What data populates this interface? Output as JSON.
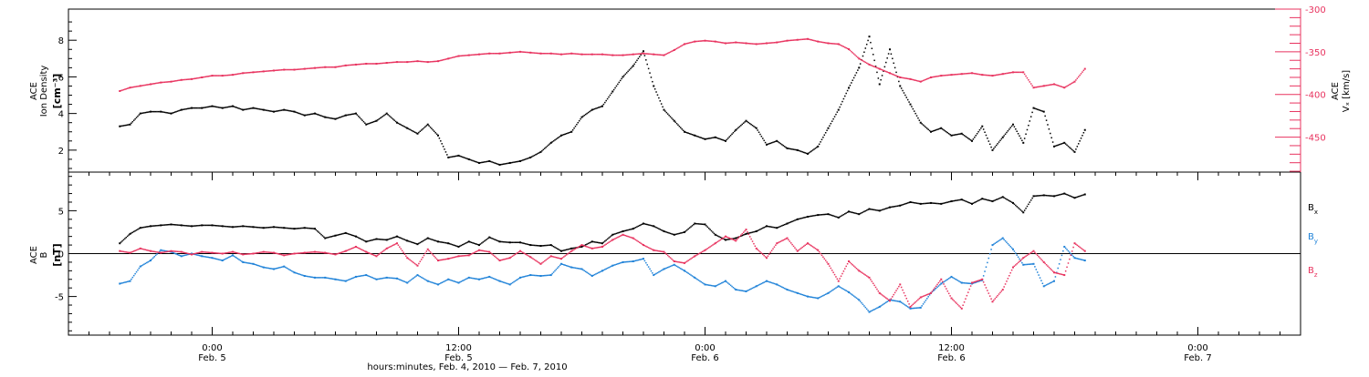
{
  "chart_data": [
    {
      "type": "scatter",
      "panel": "top",
      "left_axis": {
        "label_lines": [
          "ACE",
          "Ion Density"
        ],
        "unit": "[cm⁻³]",
        "ylim": [
          0.8,
          9.7
        ],
        "ticks": [
          2,
          4,
          6,
          8
        ],
        "tick_labels": [
          "2",
          "4",
          "6",
          "8"
        ]
      },
      "right_axis": {
        "label_lines": [
          "ACE",
          "Vₓ [km/s]"
        ],
        "ylim": [
          -491,
          -300
        ],
        "ticks": [
          -300,
          -350,
          -400,
          -450
        ],
        "tick_labels": [
          "-300",
          "-350",
          "-400",
          "-450"
        ]
      },
      "series": [
        {
          "axis": "left",
          "color": "#000000",
          "t_hours": [
            -4.5,
            -4,
            -3.5,
            -3,
            -2.5,
            -2,
            -1.5,
            -1,
            -0.5,
            0,
            0.5,
            1,
            1.5,
            2,
            2.5,
            3,
            3.5,
            4,
            4.5,
            5,
            5.5,
            6,
            6.5,
            7,
            7.5,
            8,
            8.5,
            9,
            9.5,
            10,
            10.5,
            11,
            11.5,
            12,
            12.5,
            13,
            13.5,
            14,
            14.5,
            15,
            15.5,
            16,
            16.5,
            17,
            17.5,
            18,
            18.5,
            19,
            19.5,
            20,
            20.5,
            21,
            21.5,
            22,
            22.5,
            23,
            23.5,
            24,
            24.5,
            25,
            25.5,
            26,
            26.5,
            27,
            27.5,
            28,
            28.5,
            29,
            29.5,
            30,
            30.5,
            31,
            31.5,
            32,
            32.5,
            33,
            33.5,
            34,
            34.5,
            35,
            35.5,
            36,
            36.5,
            37,
            37.5,
            38,
            38.5,
            39,
            39.5,
            40,
            40.5,
            41,
            41.5,
            42,
            42.5
          ],
          "values": [
            3.3,
            3.4,
            4.0,
            4.1,
            4.1,
            4.0,
            4.2,
            4.3,
            4.3,
            4.4,
            4.3,
            4.4,
            4.2,
            4.3,
            4.2,
            4.1,
            4.2,
            4.1,
            3.9,
            4.0,
            3.8,
            3.7,
            3.9,
            4.0,
            3.4,
            3.6,
            4.0,
            3.5,
            3.2,
            2.9,
            3.4,
            2.8,
            1.6,
            1.7,
            1.5,
            1.3,
            1.4,
            1.2,
            1.3,
            1.4,
            1.6,
            1.9,
            2.4,
            2.8,
            3.0,
            3.8,
            4.2,
            4.4,
            5.2,
            6.0,
            6.6,
            7.4,
            5.5,
            4.2,
            3.6,
            3.0,
            2.8,
            2.6,
            2.7,
            2.5,
            3.1,
            3.6,
            3.2,
            2.3,
            2.5,
            2.1,
            2.0,
            1.8,
            2.2,
            3.2,
            4.2,
            5.4,
            6.5,
            8.2,
            5.6,
            7.5,
            5.5,
            4.5,
            3.5,
            3.0,
            3.2,
            2.8,
            2.9,
            2.5,
            3.3,
            2.0,
            2.7,
            3.4,
            2.4,
            4.3,
            4.1,
            2.2,
            2.4,
            1.9,
            3.1
          ]
        },
        {
          "axis": "right",
          "color": "#e8335f",
          "t_hours": [
            -4.5,
            -4,
            -3.5,
            -3,
            -2.5,
            -2,
            -1.5,
            -1,
            -0.5,
            0,
            0.5,
            1,
            1.5,
            2,
            2.5,
            3,
            3.5,
            4,
            4.5,
            5,
            5.5,
            6,
            6.5,
            7,
            7.5,
            8,
            8.5,
            9,
            9.5,
            10,
            10.5,
            11,
            11.5,
            12,
            12.5,
            13,
            13.5,
            14,
            14.5,
            15,
            15.5,
            16,
            16.5,
            17,
            17.5,
            18,
            18.5,
            19,
            19.5,
            20,
            20.5,
            21,
            21.5,
            22,
            22.5,
            23,
            23.5,
            24,
            24.5,
            25,
            25.5,
            26,
            26.5,
            27,
            27.5,
            28,
            28.5,
            29,
            29.5,
            30,
            30.5,
            31,
            31.5,
            32,
            32.5,
            33,
            33.5,
            34,
            34.5,
            35,
            35.5,
            36,
            36.5,
            37,
            37.5,
            38,
            38.5,
            39,
            39.5,
            40,
            40.5,
            41,
            41.5,
            42,
            42.5
          ],
          "values": [
            -396,
            -392,
            -390,
            -388,
            -386,
            -385,
            -383,
            -382,
            -380,
            -378,
            -378,
            -377,
            -375,
            -374,
            -373,
            -372,
            -371,
            -371,
            -370,
            -369,
            -368,
            -368,
            -366,
            -365,
            -364,
            -364,
            -363,
            -362,
            -362,
            -361,
            -362,
            -361,
            -358,
            -355,
            -354,
            -353,
            -352,
            -352,
            -351,
            -350,
            -351,
            -352,
            -352,
            -353,
            -352,
            -353,
            -353,
            -353,
            -354,
            -354,
            -353,
            -352,
            -353,
            -354,
            -348,
            -341,
            -338,
            -337,
            -338,
            -340,
            -339,
            -340,
            -341,
            -340,
            -339,
            -337,
            -336,
            -335,
            -338,
            -340,
            -341,
            -347,
            -358,
            -365,
            -370,
            -375,
            -380,
            -382,
            -385,
            -380,
            -378,
            -377,
            -376,
            -375,
            -377,
            -378,
            -376,
            -374,
            -374,
            -392,
            -390,
            -388,
            -392,
            -385,
            -370
          ]
        }
      ]
    },
    {
      "type": "scatter",
      "panel": "bottom",
      "left_axis": {
        "label_lines": [
          "ACE",
          "B"
        ],
        "unit": "[nT]",
        "ylim": [
          -9.5,
          9.5
        ],
        "ticks": [
          5,
          0,
          -5
        ],
        "tick_labels": [
          "5",
          "0",
          "-5"
        ]
      },
      "zero_line": true,
      "series": [
        {
          "name": "Bx",
          "label": "B",
          "subscript": "x",
          "color": "#000000",
          "t_hours": [
            -4.5,
            -4,
            -3.5,
            -3,
            -2.5,
            -2,
            -1.5,
            -1,
            -0.5,
            0,
            0.5,
            1,
            1.5,
            2,
            2.5,
            3,
            3.5,
            4,
            4.5,
            5,
            5.5,
            6,
            6.5,
            7,
            7.5,
            8,
            8.5,
            9,
            9.5,
            10,
            10.5,
            11,
            11.5,
            12,
            12.5,
            13,
            13.5,
            14,
            14.5,
            15,
            15.5,
            16,
            16.5,
            17,
            17.5,
            18,
            18.5,
            19,
            19.5,
            20,
            20.5,
            21,
            21.5,
            22,
            22.5,
            23,
            23.5,
            24,
            24.5,
            25,
            25.5,
            26,
            26.5,
            27,
            27.5,
            28,
            28.5,
            29,
            29.5,
            30,
            30.5,
            31,
            31.5,
            32,
            32.5,
            33,
            33.5,
            34,
            34.5,
            35,
            35.5,
            36,
            36.5,
            37,
            37.5,
            38,
            38.5,
            39,
            39.5,
            40,
            40.5,
            41,
            41.5,
            42,
            42.5
          ],
          "values": [
            1.2,
            2.3,
            3.0,
            3.2,
            3.3,
            3.4,
            3.3,
            3.2,
            3.3,
            3.3,
            3.2,
            3.1,
            3.2,
            3.1,
            3.0,
            3.1,
            3.0,
            2.9,
            3.0,
            2.9,
            1.8,
            2.1,
            2.4,
            2.0,
            1.4,
            1.7,
            1.6,
            2.0,
            1.5,
            1.1,
            1.8,
            1.4,
            1.2,
            0.8,
            1.4,
            1.0,
            1.9,
            1.4,
            1.3,
            1.3,
            1.0,
            0.9,
            1.0,
            0.3,
            0.6,
            0.8,
            1.4,
            1.2,
            2.2,
            2.6,
            2.9,
            3.5,
            3.2,
            2.6,
            2.2,
            2.5,
            3.5,
            3.4,
            2.2,
            1.6,
            1.8,
            2.3,
            2.6,
            3.2,
            3.0,
            3.5,
            4.0,
            4.3,
            4.5,
            4.6,
            4.2,
            4.9,
            4.6,
            5.2,
            5.0,
            5.4,
            5.6,
            6.0,
            5.8,
            5.9,
            5.8,
            6.1,
            6.3,
            5.8,
            6.4,
            6.1,
            6.6,
            5.9,
            4.8,
            6.7,
            6.8,
            6.7,
            7.0,
            6.5,
            6.9
          ]
        },
        {
          "name": "By",
          "label": "B",
          "subscript": "y",
          "color": "#1f82d8",
          "t_hours": [
            -4.5,
            -4,
            -3.5,
            -3,
            -2.5,
            -2,
            -1.5,
            -1,
            -0.5,
            0,
            0.5,
            1,
            1.5,
            2,
            2.5,
            3,
            3.5,
            4,
            4.5,
            5,
            5.5,
            6,
            6.5,
            7,
            7.5,
            8,
            8.5,
            9,
            9.5,
            10,
            10.5,
            11,
            11.5,
            12,
            12.5,
            13,
            13.5,
            14,
            14.5,
            15,
            15.5,
            16,
            16.5,
            17,
            17.5,
            18,
            18.5,
            19,
            19.5,
            20,
            20.5,
            21,
            21.5,
            22,
            22.5,
            23,
            23.5,
            24,
            24.5,
            25,
            25.5,
            26,
            26.5,
            27,
            27.5,
            28,
            28.5,
            29,
            29.5,
            30,
            30.5,
            31,
            31.5,
            32,
            32.5,
            33,
            33.5,
            34,
            34.5,
            35,
            35.5,
            36,
            36.5,
            37,
            37.5,
            38,
            38.5,
            39,
            39.5,
            40,
            40.5,
            41,
            41.5,
            42,
            42.5
          ],
          "values": [
            -3.5,
            -3.2,
            -1.5,
            -0.8,
            0.4,
            0.2,
            -0.3,
            0.0,
            -0.3,
            -0.5,
            -0.8,
            -0.2,
            -1.0,
            -1.2,
            -1.6,
            -1.8,
            -1.5,
            -2.2,
            -2.6,
            -2.8,
            -2.8,
            -3.0,
            -3.2,
            -2.7,
            -2.5,
            -3.0,
            -2.8,
            -2.9,
            -3.4,
            -2.5,
            -3.2,
            -3.6,
            -3.0,
            -3.4,
            -2.8,
            -3.0,
            -2.7,
            -3.2,
            -3.6,
            -2.8,
            -2.5,
            -2.6,
            -2.5,
            -1.2,
            -1.6,
            -1.8,
            -2.6,
            -2.0,
            -1.4,
            -1.0,
            -0.9,
            -0.6,
            -2.5,
            -1.8,
            -1.3,
            -2.0,
            -2.8,
            -3.6,
            -3.8,
            -3.2,
            -4.2,
            -4.4,
            -3.8,
            -3.2,
            -3.6,
            -4.2,
            -4.6,
            -5.0,
            -5.2,
            -4.6,
            -3.8,
            -4.5,
            -5.4,
            -6.8,
            -6.2,
            -5.4,
            -5.6,
            -6.4,
            -6.3,
            -4.6,
            -3.5,
            -2.7,
            -3.4,
            -3.5,
            -3.1,
            1.0,
            1.8,
            0.5,
            -1.3,
            -1.2,
            -3.8,
            -3.2,
            0.8,
            -0.5,
            -0.8
          ]
        },
        {
          "name": "Bz",
          "label": "B",
          "subscript": "z",
          "color": "#e8335f",
          "t_hours": [
            -4.5,
            -4,
            -3.5,
            -3,
            -2.5,
            -2,
            -1.5,
            -1,
            -0.5,
            0,
            0.5,
            1,
            1.5,
            2,
            2.5,
            3,
            3.5,
            4,
            4.5,
            5,
            5.5,
            6,
            6.5,
            7,
            7.5,
            8,
            8.5,
            9,
            9.5,
            10,
            10.5,
            11,
            11.5,
            12,
            12.5,
            13,
            13.5,
            14,
            14.5,
            15,
            15.5,
            16,
            16.5,
            17,
            17.5,
            18,
            18.5,
            19,
            19.5,
            20,
            20.5,
            21,
            21.5,
            22,
            22.5,
            23,
            23.5,
            24,
            24.5,
            25,
            25.5,
            26,
            26.5,
            27,
            27.5,
            28,
            28.5,
            29,
            29.5,
            30,
            30.5,
            31,
            31.5,
            32,
            32.5,
            33,
            33.5,
            34,
            34.5,
            35,
            35.5,
            36,
            36.5,
            37,
            37.5,
            38,
            38.5,
            39,
            39.5,
            40,
            40.5,
            41,
            41.5,
            42,
            42.5
          ],
          "values": [
            0.3,
            0.1,
            0.6,
            0.3,
            0.1,
            0.3,
            0.2,
            -0.1,
            0.2,
            0.1,
            0.0,
            0.2,
            -0.1,
            0.0,
            0.2,
            0.1,
            -0.2,
            0.0,
            0.1,
            0.2,
            0.1,
            -0.1,
            0.3,
            0.8,
            0.2,
            -0.3,
            0.6,
            1.2,
            -0.5,
            -1.4,
            0.5,
            -0.8,
            -0.6,
            -0.3,
            -0.2,
            0.4,
            0.2,
            -0.8,
            -0.5,
            0.3,
            -0.4,
            -1.2,
            -0.3,
            -0.6,
            0.3,
            1.0,
            0.6,
            0.8,
            1.6,
            2.2,
            1.8,
            1.0,
            0.4,
            0.2,
            -0.9,
            -1.1,
            -0.3,
            0.4,
            1.2,
            2.0,
            1.5,
            2.8,
            0.6,
            -0.5,
            1.2,
            1.8,
            0.3,
            1.2,
            0.4,
            -1.2,
            -3.2,
            -0.9,
            -2.0,
            -2.8,
            -4.6,
            -5.5,
            -3.6,
            -6.2,
            -5.1,
            -4.6,
            -3.0,
            -5.2,
            -6.4,
            -3.4,
            -3.0,
            -5.6,
            -4.2,
            -1.6,
            -0.5,
            0.3,
            -1.0,
            -2.2,
            -2.5,
            1.2,
            0.3
          ]
        }
      ]
    }
  ],
  "x_axis": {
    "range_hours": [
      -7,
      53
    ],
    "major_ticks_hours": [
      0,
      12,
      24,
      36,
      48
    ],
    "tick_labels": [
      {
        "time": "0:00",
        "date": "Feb. 5"
      },
      {
        "time": "12:00",
        "date": "Feb. 5"
      },
      {
        "time": "0:00",
        "date": "Feb. 6"
      },
      {
        "time": "12:00",
        "date": "Feb. 6"
      },
      {
        "time": "0:00",
        "date": "Feb. 7"
      }
    ],
    "title": "hours:minutes, Feb.  4, 2010 — Feb.  7, 2010"
  }
}
